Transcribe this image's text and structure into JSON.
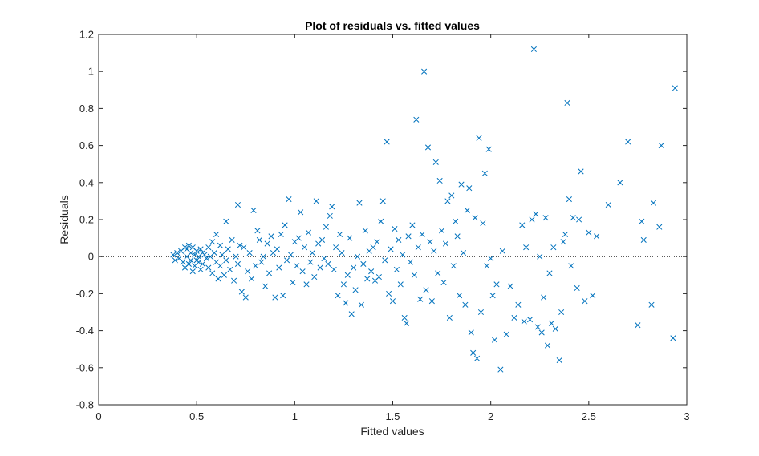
{
  "chart_data": {
    "type": "scatter",
    "title": "Plot of residuals vs. fitted values",
    "xlabel": "Fitted values",
    "ylabel": "Residuals",
    "xlim": [
      0,
      3
    ],
    "ylim": [
      -0.8,
      1.2
    ],
    "xticks": [
      0,
      0.5,
      1,
      1.5,
      2,
      2.5,
      3
    ],
    "xtick_labels": [
      "0",
      "0.5",
      "1",
      "1.5",
      "2",
      "2.5",
      "3"
    ],
    "yticks": [
      -0.8,
      -0.6,
      -0.4,
      -0.2,
      0,
      0.2,
      0.4,
      0.6,
      0.8,
      1,
      1.2
    ],
    "ytick_labels": [
      "-0.8",
      "-0.6",
      "-0.4",
      "-0.2",
      "0",
      "0.2",
      "0.4",
      "0.6",
      "0.8",
      "1",
      "1.2"
    ],
    "grid": false,
    "reference_line": {
      "y": 0,
      "style": "dotted"
    },
    "marker": "x",
    "color": "#0072BD",
    "points": [
      [
        0.38,
        0.01
      ],
      [
        0.39,
        -0.02
      ],
      [
        0.4,
        0.02
      ],
      [
        0.41,
        -0.01
      ],
      [
        0.42,
        0.03
      ],
      [
        0.43,
        -0.03
      ],
      [
        0.44,
        0.05
      ],
      [
        0.44,
        -0.06
      ],
      [
        0.45,
        0.0
      ],
      [
        0.45,
        0.04
      ],
      [
        0.46,
        -0.04
      ],
      [
        0.46,
        0.06
      ],
      [
        0.47,
        -0.02
      ],
      [
        0.47,
        0.02
      ],
      [
        0.48,
        -0.08
      ],
      [
        0.48,
        0.05
      ],
      [
        0.49,
        0.01
      ],
      [
        0.49,
        -0.05
      ],
      [
        0.5,
        0.03
      ],
      [
        0.5,
        -0.02
      ],
      [
        0.51,
        0.0
      ],
      [
        0.51,
        -0.03
      ],
      [
        0.52,
        0.04
      ],
      [
        0.52,
        -0.07
      ],
      [
        0.53,
        0.02
      ],
      [
        0.53,
        -0.04
      ],
      [
        0.54,
        0.01
      ],
      [
        0.55,
        -0.01
      ],
      [
        0.56,
        0.05
      ],
      [
        0.56,
        -0.06
      ],
      [
        0.57,
        0.0
      ],
      [
        0.58,
        0.08
      ],
      [
        0.58,
        -0.09
      ],
      [
        0.59,
        0.02
      ],
      [
        0.6,
        -0.03
      ],
      [
        0.6,
        0.12
      ],
      [
        0.61,
        -0.12
      ],
      [
        0.62,
        0.06
      ],
      [
        0.62,
        -0.05
      ],
      [
        0.63,
        0.01
      ],
      [
        0.64,
        -0.1
      ],
      [
        0.65,
        0.19
      ],
      [
        0.65,
        -0.02
      ],
      [
        0.66,
        0.04
      ],
      [
        0.67,
        -0.07
      ],
      [
        0.68,
        0.09
      ],
      [
        0.69,
        -0.13
      ],
      [
        0.7,
        0.0
      ],
      [
        0.71,
        0.28
      ],
      [
        0.71,
        -0.04
      ],
      [
        0.72,
        0.06
      ],
      [
        0.73,
        -0.19
      ],
      [
        0.74,
        0.05
      ],
      [
        0.75,
        -0.22
      ],
      [
        0.76,
        -0.08
      ],
      [
        0.77,
        0.02
      ],
      [
        0.78,
        -0.12
      ],
      [
        0.79,
        0.25
      ],
      [
        0.8,
        -0.05
      ],
      [
        0.81,
        0.14
      ],
      [
        0.82,
        0.09
      ],
      [
        0.83,
        -0.03
      ],
      [
        0.84,
        0.0
      ],
      [
        0.85,
        -0.16
      ],
      [
        0.86,
        0.07
      ],
      [
        0.87,
        -0.09
      ],
      [
        0.88,
        0.11
      ],
      [
        0.89,
        0.02
      ],
      [
        0.9,
        -0.22
      ],
      [
        0.91,
        0.04
      ],
      [
        0.92,
        -0.06
      ],
      [
        0.93,
        0.12
      ],
      [
        0.94,
        -0.21
      ],
      [
        0.95,
        0.17
      ],
      [
        0.96,
        -0.02
      ],
      [
        0.97,
        0.31
      ],
      [
        0.98,
        0.01
      ],
      [
        0.99,
        -0.14
      ],
      [
        1.0,
        0.08
      ],
      [
        1.01,
        -0.05
      ],
      [
        1.02,
        0.1
      ],
      [
        1.03,
        0.24
      ],
      [
        1.04,
        -0.08
      ],
      [
        1.05,
        0.05
      ],
      [
        1.06,
        -0.15
      ],
      [
        1.07,
        0.13
      ],
      [
        1.08,
        -0.03
      ],
      [
        1.09,
        0.02
      ],
      [
        1.1,
        -0.11
      ],
      [
        1.11,
        0.3
      ],
      [
        1.12,
        0.07
      ],
      [
        1.13,
        -0.06
      ],
      [
        1.14,
        0.09
      ],
      [
        1.15,
        -0.01
      ],
      [
        1.16,
        0.16
      ],
      [
        1.17,
        -0.04
      ],
      [
        1.18,
        0.22
      ],
      [
        1.19,
        0.27
      ],
      [
        1.2,
        -0.07
      ],
      [
        1.21,
        0.05
      ],
      [
        1.22,
        -0.21
      ],
      [
        1.23,
        0.12
      ],
      [
        1.24,
        0.02
      ],
      [
        1.25,
        -0.15
      ],
      [
        1.26,
        -0.25
      ],
      [
        1.27,
        -0.1
      ],
      [
        1.28,
        0.1
      ],
      [
        1.29,
        -0.31
      ],
      [
        1.3,
        -0.06
      ],
      [
        1.31,
        -0.18
      ],
      [
        1.32,
        0.0
      ],
      [
        1.33,
        0.29
      ],
      [
        1.34,
        -0.26
      ],
      [
        1.35,
        -0.04
      ],
      [
        1.36,
        0.14
      ],
      [
        1.37,
        -0.12
      ],
      [
        1.38,
        0.03
      ],
      [
        1.39,
        -0.08
      ],
      [
        1.4,
        0.05
      ],
      [
        1.41,
        -0.13
      ],
      [
        1.42,
        0.08
      ],
      [
        1.43,
        -0.11
      ],
      [
        1.44,
        0.19
      ],
      [
        1.45,
        0.3
      ],
      [
        1.46,
        -0.02
      ],
      [
        1.47,
        0.62
      ],
      [
        1.48,
        -0.2
      ],
      [
        1.49,
        0.04
      ],
      [
        1.5,
        -0.24
      ],
      [
        1.51,
        0.15
      ],
      [
        1.52,
        -0.07
      ],
      [
        1.53,
        0.09
      ],
      [
        1.54,
        -0.15
      ],
      [
        1.55,
        0.01
      ],
      [
        1.56,
        -0.33
      ],
      [
        1.57,
        -0.36
      ],
      [
        1.58,
        0.11
      ],
      [
        1.59,
        -0.03
      ],
      [
        1.6,
        0.17
      ],
      [
        1.61,
        -0.1
      ],
      [
        1.62,
        0.74
      ],
      [
        1.63,
        0.05
      ],
      [
        1.64,
        -0.23
      ],
      [
        1.65,
        0.12
      ],
      [
        1.66,
        1.0
      ],
      [
        1.67,
        -0.18
      ],
      [
        1.68,
        0.59
      ],
      [
        1.69,
        0.08
      ],
      [
        1.7,
        -0.24
      ],
      [
        1.71,
        0.03
      ],
      [
        1.72,
        0.51
      ],
      [
        1.73,
        -0.09
      ],
      [
        1.74,
        0.41
      ],
      [
        1.75,
        0.14
      ],
      [
        1.76,
        -0.14
      ],
      [
        1.77,
        0.07
      ],
      [
        1.78,
        0.3
      ],
      [
        1.79,
        -0.33
      ],
      [
        1.8,
        0.33
      ],
      [
        1.81,
        -0.05
      ],
      [
        1.82,
        0.19
      ],
      [
        1.83,
        0.11
      ],
      [
        1.84,
        -0.21
      ],
      [
        1.85,
        0.39
      ],
      [
        1.86,
        0.02
      ],
      [
        1.87,
        -0.26
      ],
      [
        1.88,
        0.25
      ],
      [
        1.89,
        0.37
      ],
      [
        1.9,
        -0.41
      ],
      [
        1.91,
        -0.52
      ],
      [
        1.92,
        0.21
      ],
      [
        1.93,
        -0.55
      ],
      [
        1.94,
        0.64
      ],
      [
        1.95,
        -0.3
      ],
      [
        1.96,
        0.18
      ],
      [
        1.97,
        0.45
      ],
      [
        1.98,
        -0.05
      ],
      [
        1.99,
        0.58
      ],
      [
        2.0,
        -0.01
      ],
      [
        2.01,
        -0.21
      ],
      [
        2.02,
        -0.45
      ],
      [
        2.03,
        -0.15
      ],
      [
        2.05,
        -0.61
      ],
      [
        2.06,
        0.03
      ],
      [
        2.08,
        -0.42
      ],
      [
        2.1,
        -0.16
      ],
      [
        2.12,
        -0.33
      ],
      [
        2.14,
        -0.26
      ],
      [
        2.16,
        0.17
      ],
      [
        2.17,
        -0.35
      ],
      [
        2.18,
        0.05
      ],
      [
        2.2,
        -0.34
      ],
      [
        2.21,
        0.2
      ],
      [
        2.22,
        1.12
      ],
      [
        2.23,
        0.23
      ],
      [
        2.24,
        -0.38
      ],
      [
        2.25,
        0.0
      ],
      [
        2.26,
        -0.41
      ],
      [
        2.27,
        -0.22
      ],
      [
        2.28,
        0.21
      ],
      [
        2.29,
        -0.48
      ],
      [
        2.3,
        -0.09
      ],
      [
        2.31,
        -0.36
      ],
      [
        2.32,
        0.05
      ],
      [
        2.33,
        -0.39
      ],
      [
        2.35,
        -0.56
      ],
      [
        2.36,
        -0.3
      ],
      [
        2.37,
        0.08
      ],
      [
        2.38,
        0.12
      ],
      [
        2.39,
        0.83
      ],
      [
        2.4,
        0.31
      ],
      [
        2.41,
        -0.05
      ],
      [
        2.42,
        0.21
      ],
      [
        2.44,
        -0.17
      ],
      [
        2.45,
        0.2
      ],
      [
        2.46,
        0.46
      ],
      [
        2.48,
        -0.24
      ],
      [
        2.5,
        0.13
      ],
      [
        2.52,
        -0.21
      ],
      [
        2.54,
        0.11
      ],
      [
        2.6,
        0.28
      ],
      [
        2.66,
        0.4
      ],
      [
        2.7,
        0.62
      ],
      [
        2.75,
        -0.37
      ],
      [
        2.77,
        0.19
      ],
      [
        2.78,
        0.09
      ],
      [
        2.82,
        -0.26
      ],
      [
        2.83,
        0.29
      ],
      [
        2.86,
        0.16
      ],
      [
        2.87,
        0.6
      ],
      [
        2.93,
        -0.44
      ],
      [
        2.94,
        0.91
      ]
    ]
  }
}
